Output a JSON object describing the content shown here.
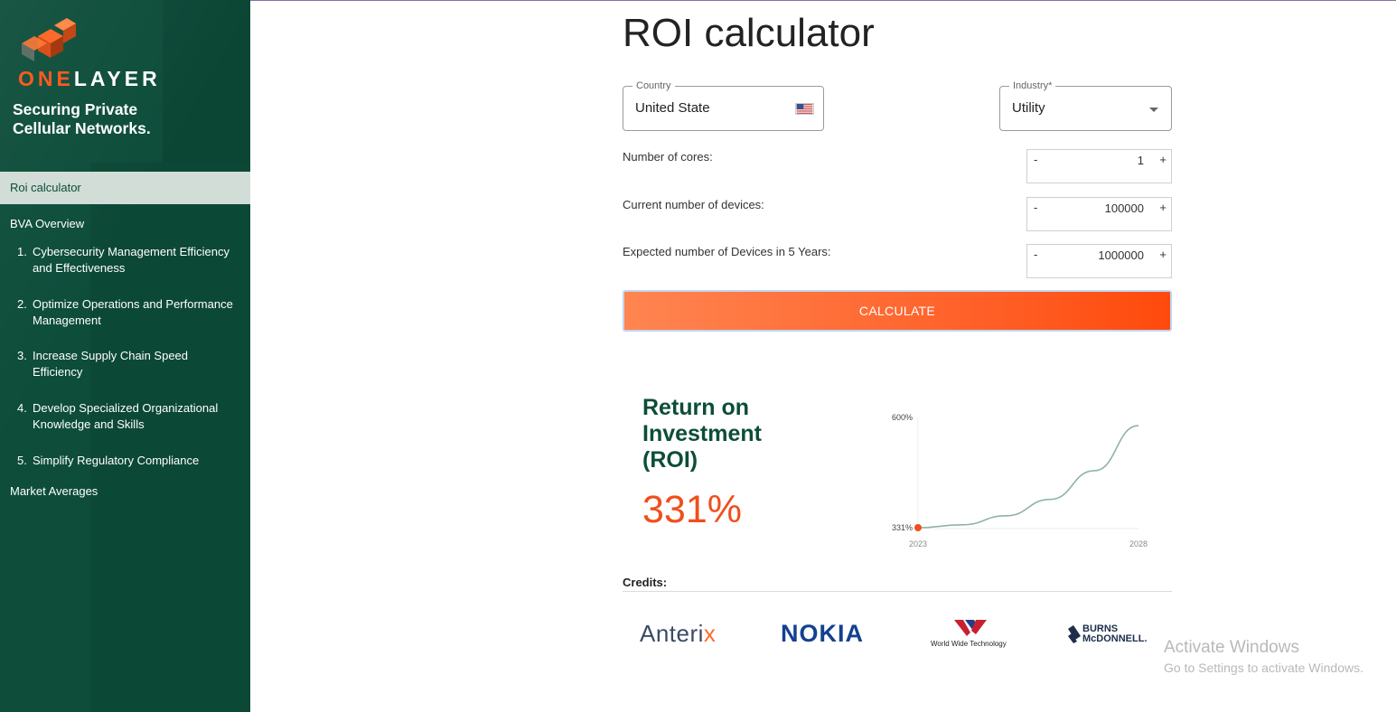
{
  "brand": {
    "name_part1": "ONE",
    "name_part2": "LAYER",
    "tagline_line1": "Securing Private",
    "tagline_line2": "Cellular Networks.",
    "colors": {
      "sidebar": "#0d4d3a",
      "accent": "#ff5a1f",
      "roi_value": "#f04e1c"
    }
  },
  "sidebar": {
    "items": [
      {
        "label": "Roi calculator",
        "active": true
      },
      {
        "label": "BVA Overview",
        "active": false
      }
    ],
    "sub_items": [
      {
        "num": "1.",
        "label": "Cybersecurity Management Efficiency and Effectiveness"
      },
      {
        "num": "2.",
        "label": "Optimize Operations and Performance Management"
      },
      {
        "num": "3.",
        "label": "Increase Supply Chain Speed Efficiency"
      },
      {
        "num": "4.",
        "label": "Develop Specialized Organizational Knowledge and Skills"
      },
      {
        "num": "5.",
        "label": "Simplify Regulatory Compliance"
      }
    ],
    "footer_item": "Market Averages"
  },
  "main": {
    "title": "ROI calculator",
    "country": {
      "label": "Country",
      "value": "United State",
      "icon": "us-flag-icon"
    },
    "industry": {
      "label": "Industry*",
      "value": "Utility",
      "icon": "chevron-down-icon"
    },
    "steppers": [
      {
        "label": "Number of cores:",
        "value": "1",
        "minus": "-",
        "plus": "+"
      },
      {
        "label": "Current number of devices:",
        "value": "100000",
        "minus": "-",
        "plus": "+"
      },
      {
        "label": "Expected number of Devices in 5 Years:",
        "value": "1000000",
        "minus": "-",
        "plus": "+"
      }
    ],
    "calculate_label": "CALCULATE",
    "roi": {
      "title": "Return on Investment (ROI)",
      "value": "331%"
    },
    "credits_label": "Credits:",
    "credits": {
      "anterix_a": "Anteri",
      "anterix_b": "x",
      "nokia": "NOKIA",
      "wwt_caption": "World Wide Technology",
      "burns_1": "BURNS",
      "burns_2": "McDONNELL."
    }
  },
  "chart_data": {
    "type": "line",
    "x": [
      2023,
      2024,
      2025,
      2026,
      2027,
      2028
    ],
    "series": [
      {
        "values": [
          331,
          338,
          360,
          400,
          470,
          580
        ]
      }
    ],
    "y_tick_labels": [
      "331%",
      "600%"
    ],
    "x_tick_labels": [
      "2023",
      "2028"
    ],
    "ylim": [
      331,
      600
    ],
    "xlim": [
      2023,
      2028
    ],
    "grid": false,
    "line_color": "#8fb3a6",
    "marker_color": "#f04e1c"
  },
  "overlay": {
    "line1": "Activate Windows",
    "line2": "Go to Settings to activate Windows."
  }
}
